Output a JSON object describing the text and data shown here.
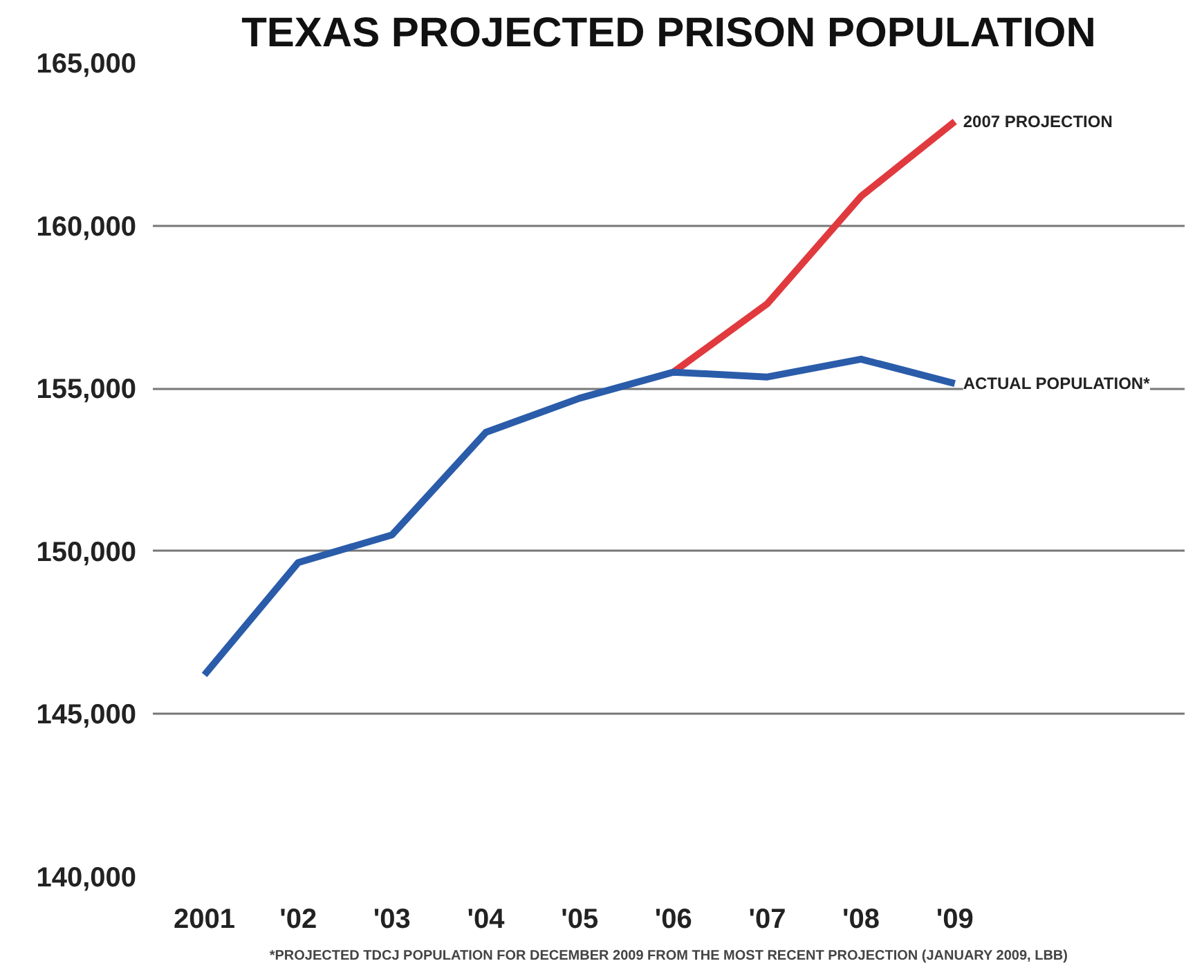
{
  "chart_data": {
    "type": "line",
    "title": "TEXAS PROJECTED PRISON POPULATION",
    "categories": [
      "2001",
      "'02",
      "'03",
      "'04",
      "'05",
      "'06",
      "'07",
      "'08",
      "'09"
    ],
    "series": [
      {
        "name": "2007 PROJECTION",
        "color": "#e03a3e",
        "values": [
          null,
          null,
          null,
          null,
          null,
          155500,
          157600,
          160900,
          163200
        ]
      },
      {
        "name": "ACTUAL POPULATION*",
        "color": "#2a5caa",
        "values": [
          146200,
          149650,
          150500,
          153650,
          154700,
          155500,
          155350,
          155900,
          155150
        ]
      }
    ],
    "ylim": [
      140000,
      165000
    ],
    "yticks": [
      {
        "value": 140000,
        "label": "140,000"
      },
      {
        "value": 145000,
        "label": "145,000"
      },
      {
        "value": 150000,
        "label": "150,000"
      },
      {
        "value": 155000,
        "label": "155,000"
      },
      {
        "value": 160000,
        "label": "160,000"
      },
      {
        "value": 165000,
        "label": "165,000"
      }
    ],
    "grid": "y",
    "legend": false,
    "marker": "none",
    "line_style": "solid",
    "annotations": [
      "*PROJECTED TDCJ POPULATION FOR DECEMBER 2009 FROM THE MOST RECENT PROJECTION (JANUARY 2009, LBB)"
    ]
  }
}
